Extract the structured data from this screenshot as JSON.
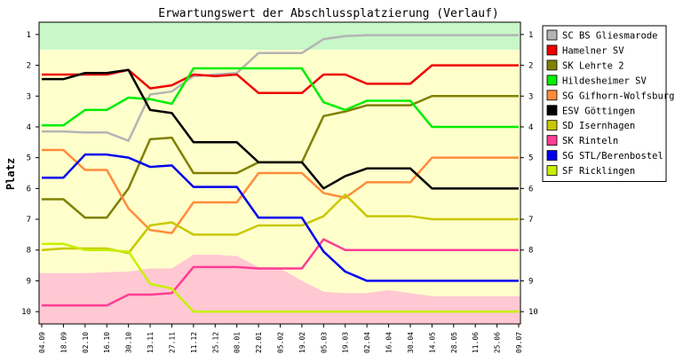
{
  "chart_data": {
    "type": "line",
    "title": "Erwartungswert der Abschlussplatzierung (Verlauf)",
    "xlabel": "",
    "ylabel": "Platz",
    "ylim": [
      10.4,
      0.6
    ],
    "y_inverted": true,
    "y_ticks": [
      1,
      2,
      3,
      4,
      5,
      6,
      7,
      8,
      9,
      10
    ],
    "categories": [
      "04.09",
      "18.09",
      "02.10",
      "16.10",
      "30.10",
      "13.11",
      "27.11",
      "11.12",
      "25.12",
      "08.01",
      "22.01",
      "05.02",
      "19.02",
      "05.03",
      "19.03",
      "02.04",
      "16.04",
      "30.04",
      "14.05",
      "28.05",
      "11.06",
      "25.06",
      "09.07"
    ],
    "legend_position": "right",
    "grid": false,
    "background_bands": [
      {
        "from": 0.6,
        "to": 1.5,
        "color": "#c8f7c8"
      },
      {
        "from": 1.5,
        "to": 10.4,
        "color": "#ffffcc"
      }
    ],
    "relegation_area": {
      "color": "#ffc8d2",
      "upper_edge": [
        8.75,
        8.75,
        8.75,
        8.72,
        8.7,
        8.6,
        8.6,
        8.15,
        8.15,
        8.2,
        8.55,
        8.6,
        9.0,
        9.35,
        9.4,
        9.4,
        9.3,
        9.4,
        9.5,
        9.5,
        9.5,
        9.5,
        9.5
      ]
    },
    "series": [
      {
        "name": "SC BS Gliesmarode",
        "color": "#b4b4b4",
        "values": [
          4.15,
          4.15,
          4.18,
          4.18,
          4.45,
          2.95,
          2.85,
          2.35,
          2.3,
          2.25,
          1.6,
          1.6,
          1.6,
          1.15,
          1.05,
          1.02,
          1.02,
          1.02,
          1.02,
          1.02,
          1.02,
          1.02,
          1.02
        ]
      },
      {
        "name": "Hamelner SV",
        "color": "#ee0000",
        "values": [
          2.3,
          2.3,
          2.3,
          2.3,
          2.15,
          2.75,
          2.65,
          2.3,
          2.35,
          2.3,
          2.9,
          2.9,
          2.9,
          2.3,
          2.3,
          2.6,
          2.6,
          2.6,
          2.0,
          2.0,
          2.0,
          2.0,
          2.0
        ]
      },
      {
        "name": "SK Lehrte 2",
        "color": "#808000",
        "values": [
          6.35,
          6.35,
          6.95,
          6.95,
          6.0,
          4.4,
          4.35,
          5.5,
          5.5,
          5.5,
          5.15,
          5.15,
          5.15,
          3.65,
          3.5,
          3.3,
          3.3,
          3.3,
          3.0,
          3.0,
          3.0,
          3.0,
          3.0
        ]
      },
      {
        "name": "Hildesheimer SV",
        "color": "#00ee00",
        "values": [
          3.95,
          3.95,
          3.45,
          3.45,
          3.05,
          3.1,
          3.25,
          2.1,
          2.1,
          2.1,
          2.1,
          2.1,
          2.1,
          3.2,
          3.45,
          3.15,
          3.15,
          3.15,
          4.0,
          4.0,
          4.0,
          4.0,
          4.0
        ]
      },
      {
        "name": "SG Gifhorn-Wolfsburg",
        "color": "#ff8c3c",
        "values": [
          4.75,
          4.75,
          5.4,
          5.4,
          6.65,
          7.35,
          7.45,
          6.45,
          6.45,
          6.45,
          5.5,
          5.5,
          5.5,
          6.15,
          6.3,
          5.8,
          5.8,
          5.8,
          5.0,
          5.0,
          5.0,
          5.0,
          5.0
        ]
      },
      {
        "name": "ESV Göttingen",
        "color": "#000000",
        "values": [
          2.45,
          2.45,
          2.25,
          2.25,
          2.15,
          3.45,
          3.55,
          4.5,
          4.5,
          4.5,
          5.15,
          5.15,
          5.15,
          6.0,
          5.6,
          5.35,
          5.35,
          5.35,
          6.0,
          6.0,
          6.0,
          6.0,
          6.0
        ]
      },
      {
        "name": "SD Isernhagen",
        "color": "#c8c800",
        "values": [
          8.0,
          7.95,
          7.95,
          7.95,
          8.1,
          7.2,
          7.1,
          7.5,
          7.5,
          7.5,
          7.2,
          7.2,
          7.2,
          6.9,
          6.2,
          6.9,
          6.9,
          6.9,
          7.0,
          7.0,
          7.0,
          7.0,
          7.0
        ]
      },
      {
        "name": "SK Rinteln",
        "color": "#ff3c96",
        "values": [
          9.8,
          9.8,
          9.8,
          9.8,
          9.45,
          9.45,
          9.4,
          8.55,
          8.55,
          8.55,
          8.6,
          8.6,
          8.6,
          7.65,
          8.0,
          8.0,
          8.0,
          8.0,
          8.0,
          8.0,
          8.0,
          8.0,
          8.0
        ]
      },
      {
        "name": "SG STL/Berenbostel",
        "color": "#0000ee",
        "values": [
          5.65,
          5.65,
          4.9,
          4.9,
          5.0,
          5.3,
          5.25,
          5.95,
          5.95,
          5.95,
          6.95,
          6.95,
          6.95,
          8.05,
          8.7,
          9.0,
          9.0,
          9.0,
          9.0,
          9.0,
          9.0,
          9.0,
          9.0
        ]
      },
      {
        "name": "SF Ricklingen",
        "color": "#c8f000",
        "values": [
          7.8,
          7.8,
          8.0,
          8.0,
          8.05,
          9.1,
          9.25,
          10.0,
          10.0,
          10.0,
          10.0,
          10.0,
          10.0,
          10.0,
          10.0,
          10.0,
          10.0,
          10.0,
          10.0,
          10.0,
          10.0,
          10.0,
          10.0
        ]
      }
    ]
  }
}
